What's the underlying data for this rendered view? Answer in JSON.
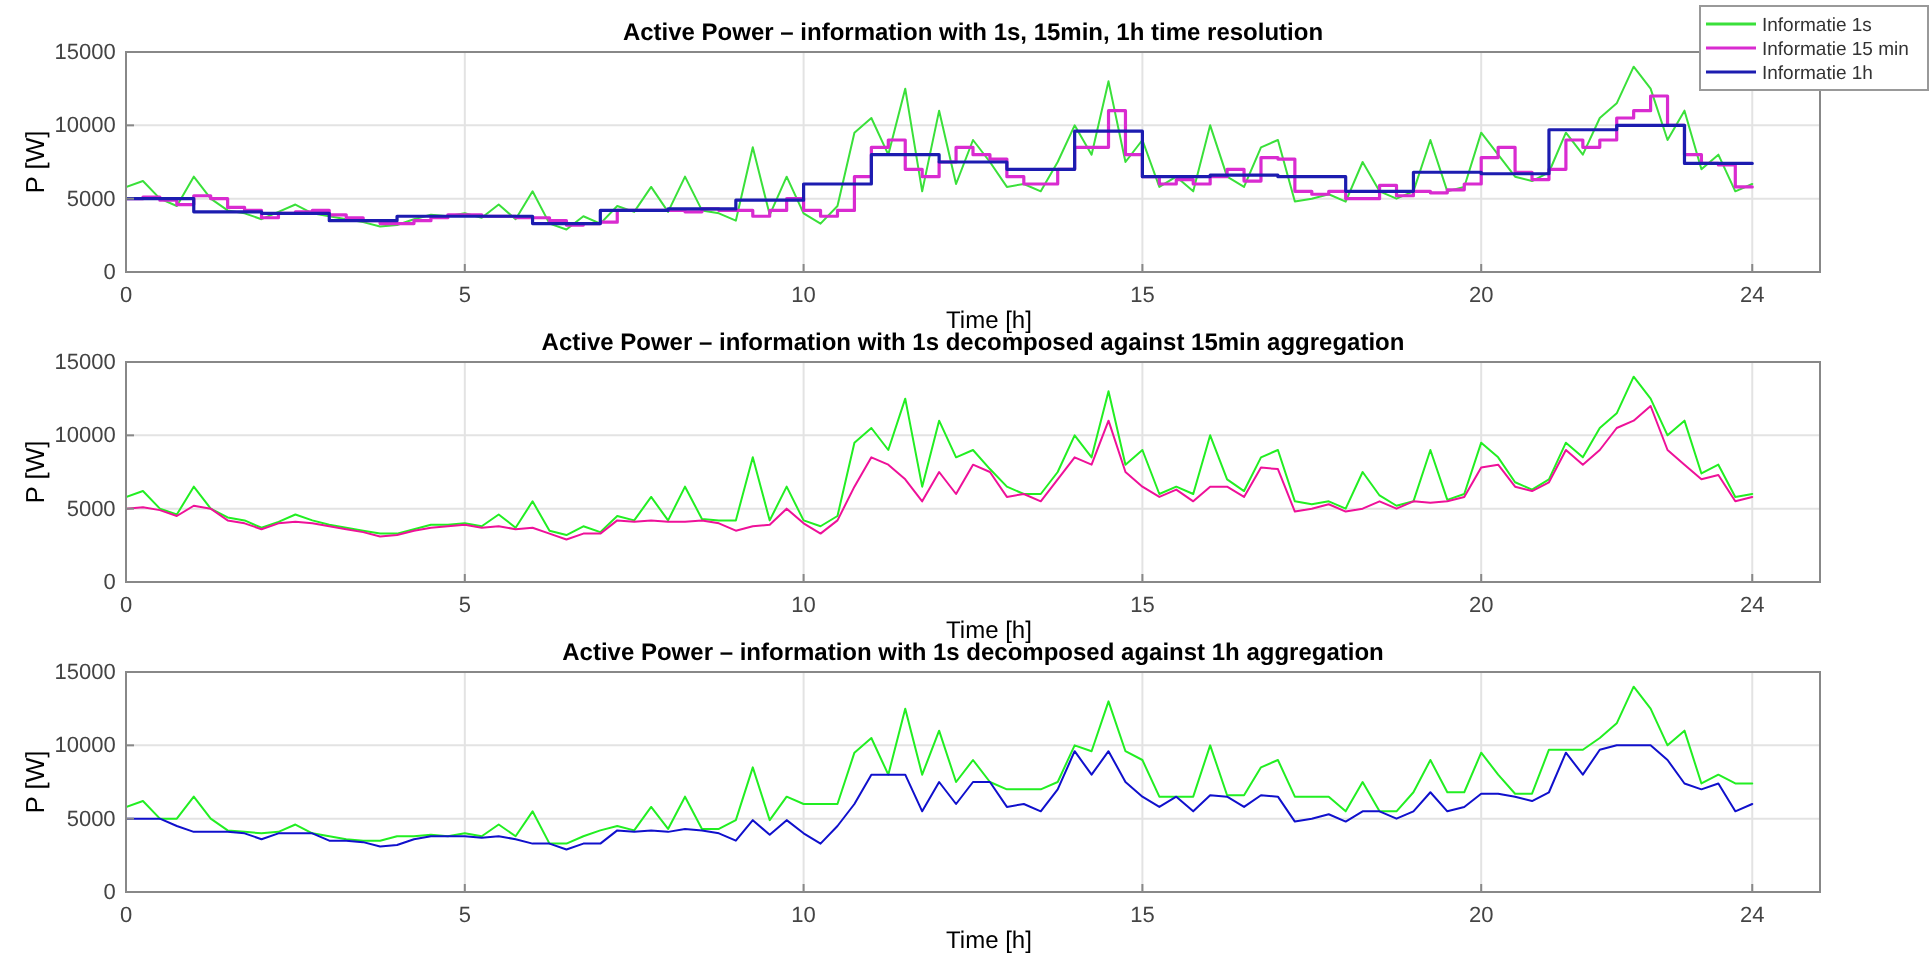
{
  "chart_data": [
    {
      "type": "line",
      "title": "Active Power – information with 1s, 15min, 1h time resolution",
      "xlabel": "Time [h]",
      "ylabel": "P [W]",
      "xlim": [
        0,
        25
      ],
      "xticks": [
        0,
        5,
        10,
        15,
        20,
        24
      ],
      "ylim": [
        0,
        15000
      ],
      "yticks": [
        0,
        5000,
        10000,
        15000
      ],
      "grid": true,
      "legend": "top right",
      "x": [
        0,
        0.25,
        0.5,
        0.75,
        1,
        1.25,
        1.5,
        1.75,
        2,
        2.25,
        2.5,
        2.75,
        3,
        3.25,
        3.5,
        3.75,
        4,
        4.25,
        4.5,
        4.75,
        5,
        5.25,
        5.5,
        5.75,
        6,
        6.25,
        6.5,
        6.75,
        7,
        7.25,
        7.5,
        7.75,
        8,
        8.25,
        8.5,
        8.75,
        9,
        9.25,
        9.5,
        9.75,
        10,
        10.25,
        10.5,
        10.75,
        11,
        11.25,
        11.5,
        11.75,
        12,
        12.25,
        12.5,
        12.75,
        13,
        13.25,
        13.5,
        13.75,
        14,
        14.25,
        14.5,
        14.75,
        15,
        15.25,
        15.5,
        15.75,
        16,
        16.25,
        16.5,
        16.75,
        17,
        17.25,
        17.5,
        17.75,
        18,
        18.25,
        18.5,
        18.75,
        19,
        19.25,
        19.5,
        19.75,
        20,
        20.25,
        20.5,
        20.75,
        21,
        21.25,
        21.5,
        21.75,
        22,
        22.25,
        22.5,
        22.75,
        23,
        23.25,
        23.5,
        23.75,
        24
      ],
      "series": [
        {
          "name": "Informatie 1s",
          "color": "#3ae03a",
          "values": [
            5800,
            6200,
            5000,
            4500,
            6500,
            5000,
            4200,
            4000,
            3600,
            4100,
            4600,
            4000,
            3800,
            3600,
            3400,
            3100,
            3200,
            3600,
            3900,
            3800,
            4000,
            3700,
            4600,
            3600,
            5500,
            3300,
            2900,
            3800,
            3300,
            4500,
            4100,
            5800,
            4100,
            6500,
            4200,
            4000,
            3500,
            8500,
            3900,
            6500,
            4000,
            3300,
            4500,
            9500,
            10500,
            8000,
            12500,
            5500,
            11000,
            6000,
            9000,
            7500,
            5800,
            6000,
            5500,
            7500,
            10000,
            8000,
            13000,
            7500,
            9000,
            5800,
            6500,
            5500,
            10000,
            6500,
            5800,
            8500,
            9000,
            4800,
            5000,
            5300,
            4800,
            7500,
            5500,
            5000,
            5500,
            9000,
            5500,
            5800,
            9500,
            8000,
            6500,
            6200,
            6800,
            9500,
            8000,
            10500,
            11500,
            14000,
            12500,
            9000,
            11000,
            7000,
            8000,
            5500,
            6000
          ]
        },
        {
          "name": "Informatie 15 min",
          "type": "step",
          "color": "#d92bd0",
          "values": [
            5000,
            5100,
            4900,
            4600,
            5200,
            5000,
            4400,
            4200,
            3700,
            4000,
            4100,
            4200,
            3900,
            3700,
            3500,
            3300,
            3300,
            3500,
            3700,
            3900,
            3900,
            3800,
            3800,
            3700,
            3700,
            3500,
            3200,
            3300,
            3400,
            4200,
            4200,
            4200,
            4200,
            4100,
            4300,
            4200,
            4200,
            3800,
            4200,
            5000,
            4200,
            3800,
            4200,
            6500,
            8500,
            9000,
            7000,
            6500,
            7500,
            8500,
            8000,
            7700,
            6500,
            6000,
            6000,
            7000,
            8500,
            8500,
            11000,
            8000,
            6500,
            6000,
            6300,
            6000,
            6500,
            7000,
            6200,
            7800,
            7700,
            5500,
            5300,
            5500,
            5000,
            5000,
            5900,
            5200,
            5500,
            5400,
            5600,
            6000,
            7800,
            8500,
            6800,
            6300,
            7000,
            9000,
            8500,
            9000,
            10500,
            11000,
            12000,
            10000,
            8000,
            7400,
            7300,
            5800,
            5800
          ]
        },
        {
          "name": "Informatie 1h",
          "type": "step",
          "color": "#1c1cb0",
          "x": [
            0,
            1,
            2,
            3,
            4,
            5,
            6,
            7,
            8,
            9,
            10,
            11,
            12,
            13,
            14,
            15,
            16,
            17,
            18,
            19,
            20,
            21,
            22,
            23,
            24
          ],
          "values": [
            5000,
            4100,
            4000,
            3500,
            3800,
            3800,
            3300,
            4200,
            4300,
            4900,
            6000,
            8000,
            7500,
            7000,
            9600,
            6500,
            6600,
            6500,
            5500,
            6800,
            6700,
            9700,
            10000,
            7400,
            7400
          ]
        }
      ]
    },
    {
      "type": "line",
      "title": "Active Power – information with 1s decomposed against 15min aggregation",
      "xlabel": "Time [h]",
      "ylabel": "P [W]",
      "xlim": [
        0,
        25
      ],
      "xticks": [
        0,
        5,
        10,
        15,
        20,
        24
      ],
      "ylim": [
        0,
        15000
      ],
      "yticks": [
        0,
        5000,
        10000,
        15000
      ],
      "grid": true,
      "x": [
        0,
        0.25,
        0.5,
        0.75,
        1,
        1.25,
        1.5,
        1.75,
        2,
        2.25,
        2.5,
        2.75,
        3,
        3.25,
        3.5,
        3.75,
        4,
        4.25,
        4.5,
        4.75,
        5,
        5.25,
        5.5,
        5.75,
        6,
        6.25,
        6.5,
        6.75,
        7,
        7.25,
        7.5,
        7.75,
        8,
        8.25,
        8.5,
        8.75,
        9,
        9.25,
        9.5,
        9.75,
        10,
        10.25,
        10.5,
        10.75,
        11,
        11.25,
        11.5,
        11.75,
        12,
        12.25,
        12.5,
        12.75,
        13,
        13.25,
        13.5,
        13.75,
        14,
        14.25,
        14.5,
        14.75,
        15,
        15.25,
        15.5,
        15.75,
        16,
        16.25,
        16.5,
        16.75,
        17,
        17.25,
        17.5,
        17.75,
        18,
        18.25,
        18.5,
        18.75,
        19,
        19.25,
        19.5,
        19.75,
        20,
        20.25,
        20.5,
        20.75,
        21,
        21.25,
        21.5,
        21.75,
        22,
        22.25,
        22.5,
        22.75,
        23,
        23.25,
        23.5,
        23.75,
        24
      ],
      "series": [
        {
          "color": "#22ee22",
          "values": [
            5800,
            6200,
            5000,
            4600,
            6500,
            5000,
            4400,
            4200,
            3700,
            4100,
            4600,
            4200,
            3900,
            3700,
            3500,
            3300,
            3300,
            3600,
            3900,
            3900,
            4000,
            3800,
            4600,
            3700,
            5500,
            3500,
            3200,
            3800,
            3400,
            4500,
            4200,
            5800,
            4200,
            6500,
            4300,
            4200,
            4200,
            8500,
            4200,
            6500,
            4200,
            3800,
            4500,
            9500,
            10500,
            9000,
            12500,
            6500,
            11000,
            8500,
            9000,
            7700,
            6500,
            6000,
            6000,
            7500,
            10000,
            8500,
            13000,
            8000,
            9000,
            6000,
            6500,
            6000,
            10000,
            7000,
            6200,
            8500,
            9000,
            5500,
            5300,
            5500,
            5000,
            7500,
            5900,
            5200,
            5500,
            9000,
            5600,
            6000,
            9500,
            8500,
            6800,
            6300,
            7000,
            9500,
            8500,
            10500,
            11500,
            14000,
            12500,
            10000,
            11000,
            7400,
            8000,
            5800,
            6000
          ]
        },
        {
          "color": "#ee1199",
          "values": [
            5000,
            5100,
            4900,
            4500,
            5200,
            5000,
            4200,
            4000,
            3600,
            4000,
            4100,
            4000,
            3800,
            3600,
            3400,
            3100,
            3200,
            3500,
            3700,
            3800,
            3900,
            3700,
            3800,
            3600,
            3700,
            3300,
            2900,
            3300,
            3300,
            4200,
            4100,
            4200,
            4100,
            4100,
            4200,
            4000,
            3500,
            3800,
            3900,
            5000,
            4000,
            3300,
            4200,
            6500,
            8500,
            8000,
            7000,
            5500,
            7500,
            6000,
            8000,
            7500,
            5800,
            6000,
            5500,
            7000,
            8500,
            8000,
            11000,
            7500,
            6500,
            5800,
            6300,
            5500,
            6500,
            6500,
            5800,
            7800,
            7700,
            4800,
            5000,
            5300,
            4800,
            5000,
            5500,
            5000,
            5500,
            5400,
            5500,
            5800,
            7800,
            8000,
            6500,
            6200,
            6800,
            9000,
            8000,
            9000,
            10500,
            11000,
            12000,
            9000,
            8000,
            7000,
            7300,
            5500,
            5800
          ]
        }
      ]
    },
    {
      "type": "line",
      "title": "Active Power – information with 1s decomposed against 1h aggregation",
      "xlabel": "Time [h]",
      "ylabel": "P [W]",
      "xlim": [
        0,
        25
      ],
      "xticks": [
        0,
        5,
        10,
        15,
        20,
        24
      ],
      "ylim": [
        0,
        15000
      ],
      "yticks": [
        0,
        5000,
        10000,
        15000
      ],
      "grid": true,
      "x": [
        0,
        0.25,
        0.5,
        0.75,
        1,
        1.25,
        1.5,
        1.75,
        2,
        2.25,
        2.5,
        2.75,
        3,
        3.25,
        3.5,
        3.75,
        4,
        4.25,
        4.5,
        4.75,
        5,
        5.25,
        5.5,
        5.75,
        6,
        6.25,
        6.5,
        6.75,
        7,
        7.25,
        7.5,
        7.75,
        8,
        8.25,
        8.5,
        8.75,
        9,
        9.25,
        9.5,
        9.75,
        10,
        10.25,
        10.5,
        10.75,
        11,
        11.25,
        11.5,
        11.75,
        12,
        12.25,
        12.5,
        12.75,
        13,
        13.25,
        13.5,
        13.75,
        14,
        14.25,
        14.5,
        14.75,
        15,
        15.25,
        15.5,
        15.75,
        16,
        16.25,
        16.5,
        16.75,
        17,
        17.25,
        17.5,
        17.75,
        18,
        18.25,
        18.5,
        18.75,
        19,
        19.25,
        19.5,
        19.75,
        20,
        20.25,
        20.5,
        20.75,
        21,
        21.25,
        21.5,
        21.75,
        22,
        22.25,
        22.5,
        22.75,
        23,
        23.25,
        23.5,
        23.75,
        24
      ],
      "series": [
        {
          "color": "#22ee22",
          "values": [
            5800,
            6200,
            5000,
            5000,
            6500,
            5000,
            4200,
            4100,
            4000,
            4100,
            4600,
            4000,
            3800,
            3600,
            3500,
            3500,
            3800,
            3800,
            3900,
            3800,
            4000,
            3800,
            4600,
            3800,
            5500,
            3300,
            3300,
            3800,
            4200,
            4500,
            4200,
            5800,
            4300,
            6500,
            4300,
            4300,
            4900,
            8500,
            4900,
            6500,
            6000,
            6000,
            6000,
            9500,
            10500,
            8000,
            12500,
            8000,
            11000,
            7500,
            9000,
            7500,
            7000,
            7000,
            7000,
            7500,
            10000,
            9600,
            13000,
            9600,
            9000,
            6500,
            6500,
            6500,
            10000,
            6600,
            6600,
            8500,
            9000,
            6500,
            6500,
            6500,
            5500,
            7500,
            5500,
            5500,
            6800,
            9000,
            6800,
            6800,
            9500,
            8000,
            6700,
            6700,
            9700,
            9700,
            9700,
            10500,
            11500,
            14000,
            12500,
            10000,
            11000,
            7400,
            8000,
            7400,
            7400
          ]
        },
        {
          "color": "#1010cc",
          "values": [
            5000,
            5000,
            5000,
            4500,
            4100,
            4100,
            4100,
            4000,
            3600,
            4000,
            4000,
            4000,
            3500,
            3500,
            3400,
            3100,
            3200,
            3600,
            3800,
            3800,
            3800,
            3700,
            3800,
            3600,
            3300,
            3300,
            2900,
            3300,
            3300,
            4200,
            4100,
            4200,
            4100,
            4300,
            4200,
            4000,
            3500,
            4900,
            3900,
            4900,
            4000,
            3300,
            4500,
            6000,
            8000,
            8000,
            8000,
            5500,
            7500,
            6000,
            7500,
            7500,
            5800,
            6000,
            5500,
            7000,
            9600,
            8000,
            9600,
            7500,
            6500,
            5800,
            6500,
            5500,
            6600,
            6500,
            5800,
            6600,
            6500,
            4800,
            5000,
            5300,
            4800,
            5500,
            5500,
            5000,
            5500,
            6800,
            5500,
            5800,
            6700,
            6700,
            6500,
            6200,
            6800,
            9500,
            8000,
            9700,
            10000,
            10000,
            10000,
            9000,
            7400,
            7000,
            7400,
            5500,
            6000
          ]
        }
      ]
    }
  ]
}
